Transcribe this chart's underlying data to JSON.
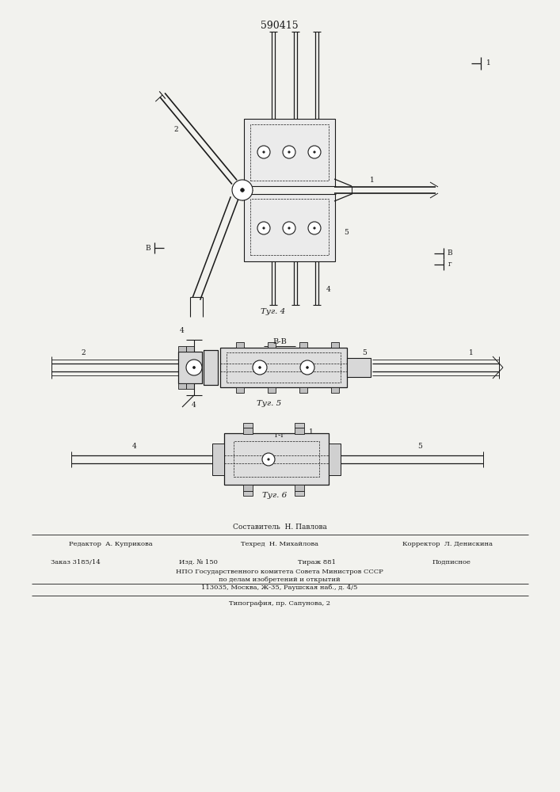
{
  "title": "590415",
  "bg_color": "#f2f2ee",
  "line_color": "#1a1a1a",
  "fig4_caption": "Τуг. 4",
  "fig5_caption": "Τуг. 5",
  "fig6_caption": "Τуг. 6",
  "footer_composer": "Составитель  Н. Павлова",
  "footer_editor": "Редактор  А. Куприкова",
  "footer_tech": "Техред  Н. Михайлова",
  "footer_corr": "Корректор  Л. Денискина",
  "footer_order": "Заказ 3185/14",
  "footer_izd": "Изд. № 150",
  "footer_tirazh": "Тираж 881",
  "footer_podp": "Подписное",
  "footer_npo": "НПО Государственного комитета Совета Министров СССР",
  "footer_po": "по делам изобретений и открытий",
  "footer_addr": "113035, Москва, Ж-35, Раушская наб., д. 4/5",
  "footer_typo": "Типография, пр. Сапунова, 2"
}
